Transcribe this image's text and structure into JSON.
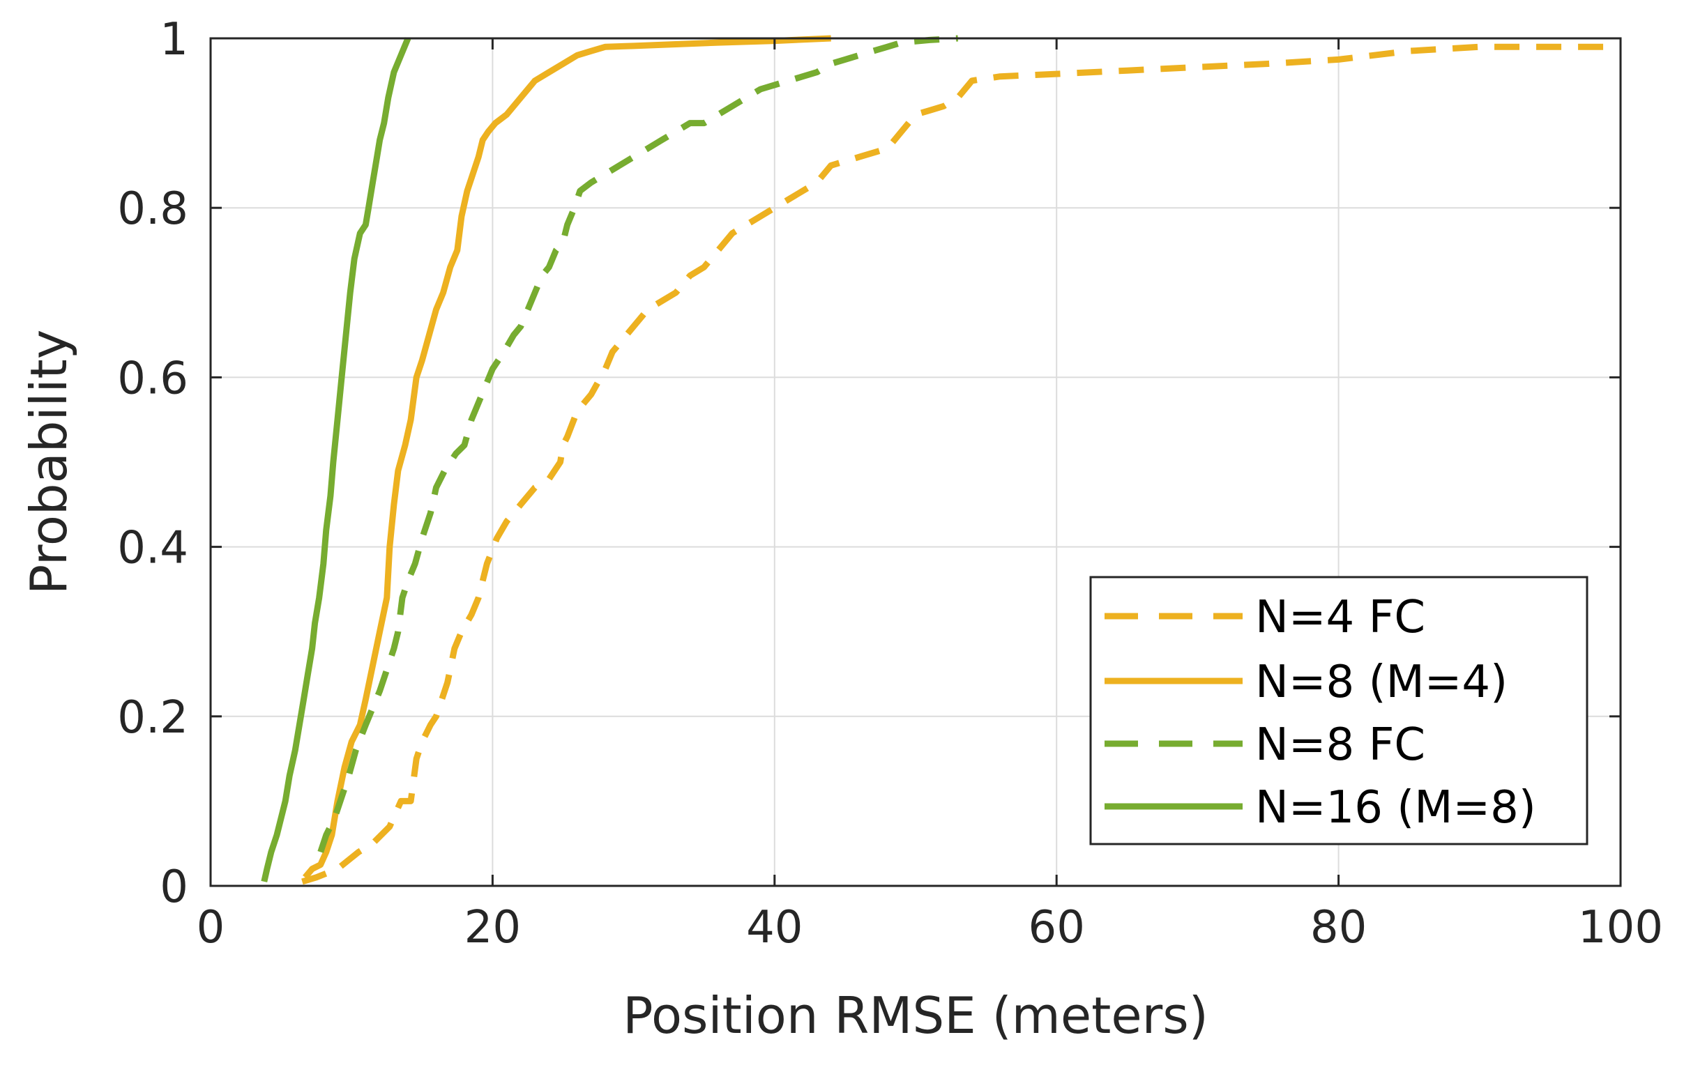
{
  "chart_data": {
    "type": "line",
    "title": "",
    "xlabel": "Position RMSE (meters)",
    "ylabel": "Probability",
    "xlim": [
      0,
      100
    ],
    "ylim": [
      0,
      1
    ],
    "xticks": [
      0,
      20,
      40,
      60,
      80,
      100
    ],
    "yticks": [
      0,
      0.2,
      0.4,
      0.6,
      0.8,
      1
    ],
    "xtick_labels": [
      "0",
      "20",
      "40",
      "60",
      "80",
      "100"
    ],
    "ytick_labels": [
      "0",
      "0.2",
      "0.4",
      "0.6",
      "0.8",
      "1"
    ],
    "grid": true,
    "legend_position": "bottom-right",
    "series": [
      {
        "name": "N=4 FC",
        "color": "#EDB120",
        "style": "dashed",
        "x": [
          6.5,
          7.5,
          9,
          10.5,
          11.5,
          12.7,
          13.5,
          14.2,
          14.6,
          15,
          15.3,
          15.6,
          16,
          16.8,
          17.3,
          17.8,
          18.5,
          19,
          19.6,
          20.3,
          21,
          21.5,
          22,
          23,
          24,
          24.8,
          25,
          25.3,
          26,
          27,
          28,
          28.5,
          29,
          30,
          31,
          32,
          33,
          34,
          35,
          36,
          37,
          38,
          39,
          40,
          41,
          42,
          43,
          44,
          46,
          48,
          49,
          50,
          51,
          52,
          53,
          54,
          56,
          60,
          65,
          70,
          75,
          80,
          85,
          90,
          95,
          100
        ],
        "y": [
          0.005,
          0.01,
          0.02,
          0.04,
          0.05,
          0.07,
          0.1,
          0.1,
          0.15,
          0.17,
          0.18,
          0.19,
          0.2,
          0.24,
          0.28,
          0.3,
          0.32,
          0.34,
          0.38,
          0.41,
          0.43,
          0.44,
          0.45,
          0.47,
          0.48,
          0.5,
          0.52,
          0.53,
          0.56,
          0.58,
          0.61,
          0.63,
          0.64,
          0.66,
          0.68,
          0.69,
          0.7,
          0.72,
          0.73,
          0.75,
          0.77,
          0.78,
          0.79,
          0.8,
          0.81,
          0.82,
          0.83,
          0.85,
          0.86,
          0.87,
          0.89,
          0.91,
          0.915,
          0.92,
          0.93,
          0.95,
          0.955,
          0.958,
          0.962,
          0.966,
          0.97,
          0.975,
          0.985,
          0.99,
          0.99,
          0.99
        ]
      },
      {
        "name": "N=8 (M=4)",
        "color": "#EDB120",
        "style": "solid",
        "x": [
          6.7,
          7.2,
          7.8,
          8.2,
          8.6,
          9,
          9.5,
          10,
          10.6,
          11,
          11.5,
          12,
          12.5,
          12.7,
          13,
          13.3,
          13.8,
          14.2,
          14.6,
          15,
          15.5,
          16,
          16.5,
          17,
          17.5,
          17.8,
          18.2,
          18.6,
          19,
          19.3,
          19.7,
          20.2,
          21,
          22,
          23,
          24,
          25,
          26,
          27,
          28,
          30,
          33,
          36,
          40,
          44
        ],
        "y": [
          0.01,
          0.02,
          0.025,
          0.04,
          0.06,
          0.1,
          0.14,
          0.17,
          0.19,
          0.22,
          0.26,
          0.3,
          0.34,
          0.4,
          0.45,
          0.49,
          0.52,
          0.55,
          0.6,
          0.62,
          0.65,
          0.68,
          0.7,
          0.73,
          0.75,
          0.79,
          0.82,
          0.84,
          0.86,
          0.88,
          0.89,
          0.9,
          0.91,
          0.93,
          0.95,
          0.96,
          0.97,
          0.98,
          0.985,
          0.99,
          0.991,
          0.993,
          0.995,
          0.997,
          1.0
        ]
      },
      {
        "name": "N=8 FC",
        "color": "#77AC30",
        "style": "dashed",
        "x": [
          7.8,
          8.2,
          8.8,
          9.2,
          9.8,
          10.3,
          11,
          11.5,
          12,
          12.6,
          13,
          13.3,
          13.6,
          14,
          14.5,
          15,
          15.6,
          16,
          16.6,
          17.4,
          18,
          18.5,
          19,
          19.5,
          20,
          20.8,
          21.5,
          22,
          22.5,
          23,
          23.5,
          24,
          24.5,
          25,
          25.3,
          25.8,
          26.2,
          27,
          28,
          29,
          30,
          31,
          32,
          33,
          34,
          35,
          36,
          37,
          38,
          39,
          40,
          41,
          42,
          43,
          44,
          45,
          46,
          47,
          48,
          49,
          51,
          53
        ],
        "y": [
          0.04,
          0.06,
          0.08,
          0.1,
          0.13,
          0.16,
          0.19,
          0.21,
          0.23,
          0.26,
          0.28,
          0.3,
          0.34,
          0.36,
          0.38,
          0.41,
          0.44,
          0.47,
          0.49,
          0.51,
          0.52,
          0.55,
          0.57,
          0.59,
          0.61,
          0.63,
          0.65,
          0.66,
          0.68,
          0.7,
          0.72,
          0.73,
          0.75,
          0.76,
          0.78,
          0.8,
          0.82,
          0.83,
          0.84,
          0.85,
          0.86,
          0.87,
          0.88,
          0.89,
          0.9,
          0.9,
          0.91,
          0.92,
          0.93,
          0.94,
          0.945,
          0.95,
          0.955,
          0.96,
          0.97,
          0.975,
          0.98,
          0.985,
          0.99,
          0.995,
          0.998,
          1.0
        ]
      },
      {
        "name": "N=16 (M=8)",
        "color": "#77AC30",
        "style": "solid",
        "x": [
          3.8,
          4,
          4.3,
          4.7,
          5,
          5.3,
          5.6,
          6,
          6.3,
          6.6,
          6.9,
          7.2,
          7.4,
          7.7,
          8,
          8.2,
          8.5,
          8.7,
          9,
          9.3,
          9.6,
          9.9,
          10.2,
          10.6,
          11,
          11.2,
          11.5,
          11.8,
          12,
          12.3,
          12.6,
          13,
          13.5,
          14
        ],
        "y": [
          0.005,
          0.02,
          0.04,
          0.06,
          0.08,
          0.1,
          0.13,
          0.16,
          0.19,
          0.22,
          0.25,
          0.28,
          0.31,
          0.34,
          0.38,
          0.42,
          0.46,
          0.5,
          0.55,
          0.6,
          0.65,
          0.7,
          0.74,
          0.77,
          0.78,
          0.8,
          0.83,
          0.86,
          0.88,
          0.9,
          0.93,
          0.96,
          0.98,
          1.0
        ]
      }
    ]
  }
}
